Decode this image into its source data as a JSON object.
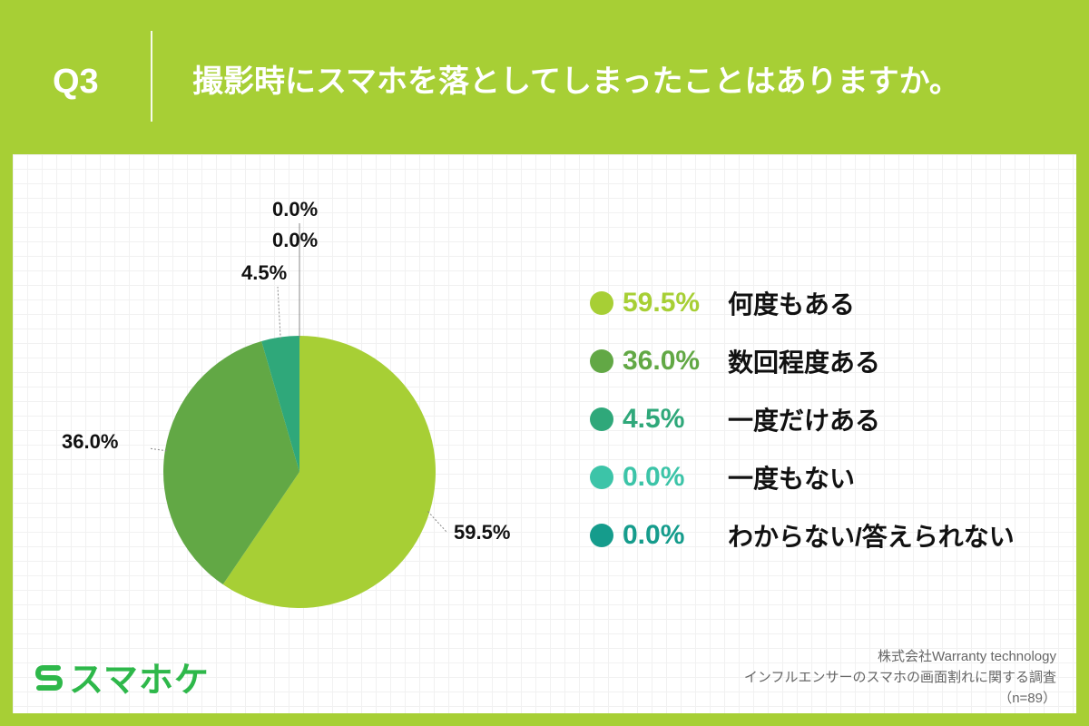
{
  "header": {
    "q_label": "Q3",
    "question": "撮影時にスマホを落としてしまったことはありますか。"
  },
  "chart_data": {
    "type": "pie",
    "title": "",
    "slices": [
      {
        "label": "何度もある",
        "value": 59.5,
        "display": "59.5%",
        "color": "#a7cf35"
      },
      {
        "label": "数回程度ある",
        "value": 36.0,
        "display": "36.0%",
        "color": "#62a845"
      },
      {
        "label": "一度だけある",
        "value": 4.5,
        "display": "4.5%",
        "color": "#2fa87a"
      },
      {
        "label": "一度もない",
        "value": 0.0,
        "display": "0.0%",
        "color": "#3cc4a8"
      },
      {
        "label": "わからない/答えられない",
        "value": 0.0,
        "display": "0.0%",
        "color": "#159c8c"
      }
    ],
    "legend_position": "right"
  },
  "brand": {
    "logo_text": "スマホケ"
  },
  "source": {
    "company": "株式会社Warranty technology",
    "survey": "インフルエンサーのスマホの画面割れに関する調査",
    "sample": "（n=89）"
  },
  "colors": {
    "background": "#a7cf35",
    "panel": "#ffffff",
    "brand_green": "#2eb84a"
  }
}
